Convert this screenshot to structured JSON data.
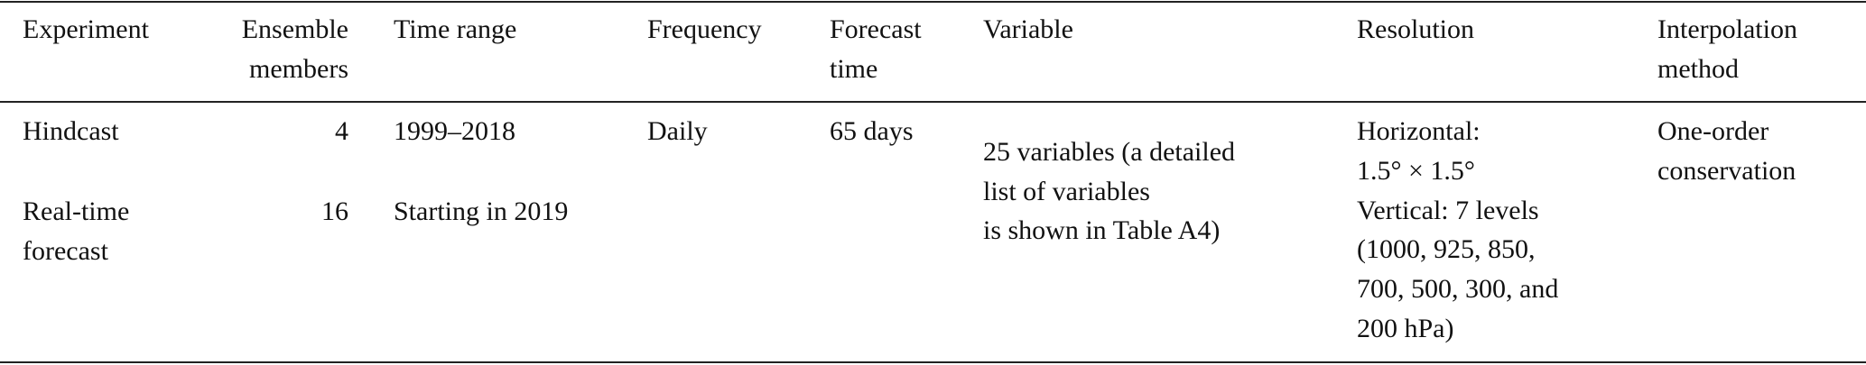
{
  "table": {
    "header": [
      [
        "Experiment"
      ],
      [
        "Ensemble",
        "members"
      ],
      [
        "Time range"
      ],
      [
        "Frequency"
      ],
      [
        "Forecast",
        "time"
      ],
      [
        "Variable"
      ],
      [
        "Resolution"
      ],
      [
        "Interpolation",
        "method"
      ]
    ],
    "rows": [
      {
        "experiment": [
          "Hindcast"
        ],
        "members": 4,
        "time_range": "1999–2018",
        "frequency": "Daily",
        "forecast_time": "65 days"
      },
      {
        "experiment": [
          "Real-time",
          "forecast"
        ],
        "members": 16,
        "time_range": "Starting in 2019"
      }
    ],
    "variable": [
      "25 variables (a detailed",
      "list of variables",
      "is shown in Table A4)"
    ],
    "resolution": [
      "Horizontal:",
      "1.5° × 1.5°",
      "Vertical: 7 levels",
      "(1000, 925, 850,",
      "700, 500, 300, and",
      "200 hPa)"
    ],
    "interpolation": [
      "One-order",
      "conservation"
    ]
  }
}
